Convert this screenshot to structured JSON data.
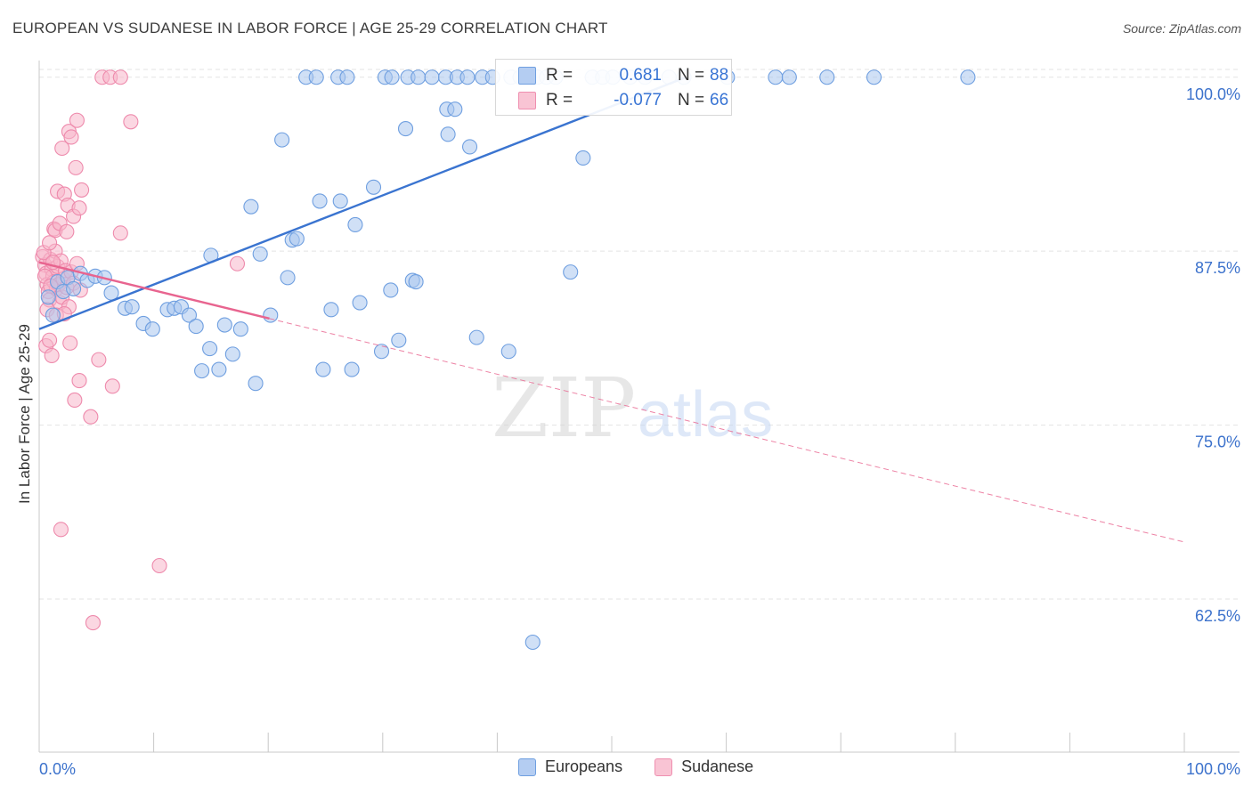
{
  "title": "EUROPEAN VS SUDANESE IN LABOR FORCE | AGE 25-29 CORRELATION CHART",
  "source": "Source: ZipAtlas.com",
  "watermark": {
    "zip": "ZIP",
    "atlas": "atlas"
  },
  "stats": {
    "europeans": {
      "r_label": "R =",
      "r_value": "0.681",
      "n_label": "N =",
      "n_value": "88"
    },
    "sudanese": {
      "r_label": "R =",
      "r_value": "-0.077",
      "n_label": "N =",
      "n_value": "66"
    }
  },
  "legend": {
    "europeans": "Europeans",
    "sudanese": "Sudanese"
  },
  "colors": {
    "blue_fill": "#a9c6ef",
    "blue_stroke": "#6f9fe0",
    "blue_line": "#3a74d0",
    "pink_fill": "#f7b7cb",
    "pink_stroke": "#ee8aac",
    "pink_line": "#e8648f",
    "tick_text": "#3c72cc",
    "grid": "#e3e3e3"
  },
  "chart_data": {
    "type": "scatter",
    "title": "EUROPEAN VS SUDANESE IN LABOR FORCE | AGE 25-29 CORRELATION CHART",
    "xlabel": "",
    "ylabel": "In Labor Force | Age 25-29",
    "xlim": [
      0,
      100
    ],
    "ylim": [
      51.5,
      101.2
    ],
    "x_tick_labels": [
      "0.0%",
      "100.0%"
    ],
    "y_ticks": [
      62.5,
      75.0,
      87.5,
      100.0
    ],
    "y_tick_labels": [
      "62.5%",
      "75.0%",
      "87.5%",
      "100.0%"
    ],
    "grid": true,
    "series": [
      {
        "name": "Europeans",
        "r": 0.681,
        "n": 88,
        "trend": {
          "x": [
            0,
            56.5
          ],
          "y": [
            81.9,
            100.0
          ],
          "style": "solid"
        },
        "points": [
          [
            0.8,
            84.2
          ],
          [
            1.2,
            82.9
          ],
          [
            1.6,
            85.3
          ],
          [
            2.1,
            84.6
          ],
          [
            2.5,
            85.6
          ],
          [
            3.0,
            84.8
          ],
          [
            3.6,
            85.9
          ],
          [
            4.2,
            85.4
          ],
          [
            4.9,
            85.7
          ],
          [
            5.7,
            85.6
          ],
          [
            6.3,
            84.5
          ],
          [
            7.5,
            83.4
          ],
          [
            8.1,
            83.5
          ],
          [
            9.1,
            82.3
          ],
          [
            9.9,
            81.9
          ],
          [
            11.2,
            83.3
          ],
          [
            11.8,
            83.4
          ],
          [
            12.4,
            83.5
          ],
          [
            13.1,
            82.9
          ],
          [
            13.7,
            82.1
          ],
          [
            14.2,
            78.9
          ],
          [
            14.9,
            80.5
          ],
          [
            15.0,
            87.2
          ],
          [
            15.7,
            79.0
          ],
          [
            16.2,
            82.2
          ],
          [
            16.9,
            80.1
          ],
          [
            17.6,
            81.9
          ],
          [
            18.5,
            90.7
          ],
          [
            18.9,
            78.0
          ],
          [
            19.3,
            87.3
          ],
          [
            20.2,
            82.9
          ],
          [
            21.2,
            95.5
          ],
          [
            21.7,
            85.6
          ],
          [
            22.1,
            88.3
          ],
          [
            22.5,
            88.4
          ],
          [
            24.5,
            91.1
          ],
          [
            24.8,
            79.0
          ],
          [
            25.5,
            83.3
          ],
          [
            26.3,
            91.1
          ],
          [
            27.3,
            79.0
          ],
          [
            27.6,
            89.4
          ],
          [
            28.0,
            83.8
          ],
          [
            29.2,
            92.1
          ],
          [
            29.9,
            80.3
          ],
          [
            30.7,
            84.7
          ],
          [
            31.4,
            81.1
          ],
          [
            32.0,
            96.3
          ],
          [
            32.6,
            85.4
          ],
          [
            32.9,
            85.3
          ],
          [
            35.6,
            97.7
          ],
          [
            36.3,
            97.7
          ],
          [
            35.7,
            95.9
          ],
          [
            37.6,
            95.0
          ],
          [
            38.2,
            81.3
          ],
          [
            41.0,
            80.3
          ],
          [
            43.1,
            59.4
          ],
          [
            46.4,
            86.0
          ],
          [
            47.5,
            94.2
          ],
          [
            23.3,
            100.0
          ],
          [
            24.2,
            100.0
          ],
          [
            26.1,
            100.0
          ],
          [
            26.9,
            100.0
          ],
          [
            30.2,
            100.0
          ],
          [
            30.8,
            100.0
          ],
          [
            32.2,
            100.0
          ],
          [
            33.1,
            100.0
          ],
          [
            34.3,
            100.0
          ],
          [
            35.5,
            100.0
          ],
          [
            36.5,
            100.0
          ],
          [
            37.4,
            100.0
          ],
          [
            38.7,
            100.0
          ],
          [
            39.6,
            100.0
          ],
          [
            41.2,
            100.0
          ],
          [
            42.0,
            100.0
          ],
          [
            43.5,
            100.0
          ],
          [
            44.3,
            100.0
          ],
          [
            45.1,
            100.0
          ],
          [
            48.3,
            100.0
          ],
          [
            49.2,
            100.0
          ],
          [
            50.1,
            100.0
          ],
          [
            51.6,
            100.0
          ],
          [
            52.9,
            100.0
          ],
          [
            55.0,
            100.0
          ],
          [
            56.3,
            100.0
          ],
          [
            60.1,
            100.0
          ],
          [
            64.3,
            100.0
          ],
          [
            65.5,
            100.0
          ],
          [
            68.8,
            100.0
          ],
          [
            72.9,
            100.0
          ],
          [
            81.1,
            100.0
          ]
        ]
      },
      {
        "name": "Sudanese",
        "r": -0.077,
        "n": 66,
        "trend": {
          "x": [
            0,
            100
          ],
          "y": [
            86.7,
            66.6
          ],
          "solid_until": 20.1
        },
        "points": [
          [
            0.3,
            87.1
          ],
          [
            0.5,
            86.5
          ],
          [
            0.6,
            85.9
          ],
          [
            0.7,
            85.1
          ],
          [
            0.8,
            84.6
          ],
          [
            0.9,
            84.0
          ],
          [
            1.0,
            86.9
          ],
          [
            1.1,
            86.2
          ],
          [
            1.2,
            85.7
          ],
          [
            1.3,
            85.3
          ],
          [
            1.4,
            87.5
          ],
          [
            1.5,
            84.8
          ],
          [
            1.6,
            86.4
          ],
          [
            1.7,
            85.1
          ],
          [
            1.8,
            83.8
          ],
          [
            1.9,
            86.8
          ],
          [
            2.0,
            84.2
          ],
          [
            2.1,
            85.5
          ],
          [
            2.3,
            86.1
          ],
          [
            2.4,
            84.9
          ],
          [
            2.6,
            83.5
          ],
          [
            2.8,
            86.0
          ],
          [
            3.0,
            85.2
          ],
          [
            3.3,
            86.6
          ],
          [
            3.6,
            84.7
          ],
          [
            0.6,
            80.7
          ],
          [
            0.9,
            81.1
          ],
          [
            1.1,
            80.0
          ],
          [
            1.3,
            89.1
          ],
          [
            1.4,
            89.0
          ],
          [
            1.6,
            91.8
          ],
          [
            1.8,
            89.5
          ],
          [
            2.0,
            94.9
          ],
          [
            2.2,
            91.6
          ],
          [
            2.4,
            88.9
          ],
          [
            2.5,
            90.8
          ],
          [
            2.6,
            96.1
          ],
          [
            2.8,
            95.7
          ],
          [
            3.0,
            90.0
          ],
          [
            3.2,
            93.5
          ],
          [
            3.3,
            96.9
          ],
          [
            3.5,
            90.6
          ],
          [
            3.7,
            91.9
          ],
          [
            2.7,
            80.9
          ],
          [
            3.1,
            76.8
          ],
          [
            3.5,
            78.2
          ],
          [
            4.5,
            75.6
          ],
          [
            5.2,
            79.7
          ],
          [
            6.4,
            77.8
          ],
          [
            7.1,
            88.8
          ],
          [
            8.0,
            96.8
          ],
          [
            10.5,
            64.9
          ],
          [
            1.9,
            67.5
          ],
          [
            4.7,
            60.8
          ],
          [
            5.5,
            100.0
          ],
          [
            6.2,
            100.0
          ],
          [
            7.1,
            100.0
          ],
          [
            17.3,
            86.6
          ],
          [
            0.4,
            87.4
          ],
          [
            0.9,
            88.1
          ],
          [
            1.2,
            86.7
          ],
          [
            0.7,
            83.3
          ],
          [
            1.5,
            82.9
          ],
          [
            2.2,
            83.0
          ],
          [
            0.5,
            85.7
          ],
          [
            1.0,
            85.0
          ]
        ]
      }
    ]
  }
}
